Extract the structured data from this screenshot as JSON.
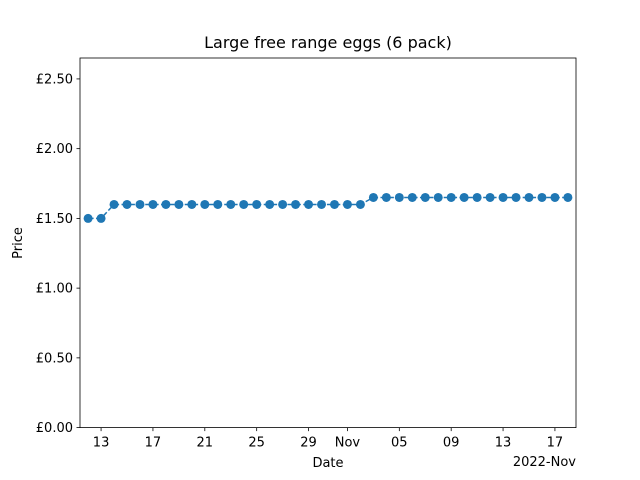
{
  "chart_data": {
    "type": "line",
    "title": "Large free range eggs (6 pack)",
    "xlabel": "Date",
    "ylabel": "Price",
    "x_offset_label": "2022-Nov",
    "ylim": [
      0,
      2.65
    ],
    "xlim": [
      "2022-10-11T09:00",
      "2022-11-18T15:00"
    ],
    "y_ticks": [
      {
        "value": 0,
        "label": "£0.00"
      },
      {
        "value": 0.5,
        "label": "£0.50"
      },
      {
        "value": 1.0,
        "label": "£1.00"
      },
      {
        "value": 1.5,
        "label": "£1.50"
      },
      {
        "value": 2.0,
        "label": "£2.00"
      },
      {
        "value": 2.5,
        "label": "£2.50"
      }
    ],
    "x_ticks": [
      {
        "date": "2022-10-13",
        "label": "13"
      },
      {
        "date": "2022-10-17",
        "label": "17"
      },
      {
        "date": "2022-10-21",
        "label": "21"
      },
      {
        "date": "2022-10-25",
        "label": "25"
      },
      {
        "date": "2022-10-29",
        "label": "29"
      },
      {
        "date": "2022-11-01",
        "label": "Nov"
      },
      {
        "date": "2022-11-05",
        "label": "05"
      },
      {
        "date": "2022-11-09",
        "label": "09"
      },
      {
        "date": "2022-11-13",
        "label": "13"
      },
      {
        "date": "2022-11-17",
        "label": "17"
      }
    ],
    "series": [
      {
        "color": "#1f77b4",
        "x": [
          "2022-10-12",
          "2022-10-13",
          "2022-10-14",
          "2022-10-15",
          "2022-10-16",
          "2022-10-17",
          "2022-10-18",
          "2022-10-19",
          "2022-10-20",
          "2022-10-21",
          "2022-10-22",
          "2022-10-23",
          "2022-10-24",
          "2022-10-25",
          "2022-10-26",
          "2022-10-27",
          "2022-10-28",
          "2022-10-29",
          "2022-10-30",
          "2022-10-31",
          "2022-11-01",
          "2022-11-02",
          "2022-11-03",
          "2022-11-04",
          "2022-11-05",
          "2022-11-06",
          "2022-11-07",
          "2022-11-08",
          "2022-11-09",
          "2022-11-10",
          "2022-11-11",
          "2022-11-12",
          "2022-11-13",
          "2022-11-14",
          "2022-11-15",
          "2022-11-16",
          "2022-11-17",
          "2022-11-18"
        ],
        "values": [
          1.5,
          1.5,
          1.6,
          1.6,
          1.6,
          1.6,
          1.6,
          1.6,
          1.6,
          1.6,
          1.6,
          1.6,
          1.6,
          1.6,
          1.6,
          1.6,
          1.6,
          1.6,
          1.6,
          1.6,
          1.6,
          1.6,
          1.65,
          1.65,
          1.65,
          1.65,
          1.65,
          1.65,
          1.65,
          1.65,
          1.65,
          1.65,
          1.65,
          1.65,
          1.65,
          1.65,
          1.65,
          1.65
        ]
      }
    ]
  }
}
